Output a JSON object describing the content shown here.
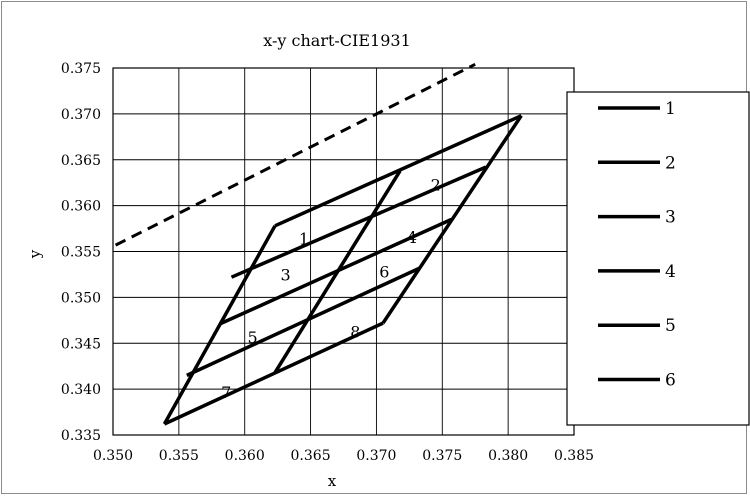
{
  "chart_data": {
    "type": "line",
    "title": "x-y chart-CIE1931",
    "xlabel": "x",
    "ylabel": "y",
    "xlim": [
      0.35,
      0.385
    ],
    "ylim": [
      0.335,
      0.375
    ],
    "x_ticks": [
      "0.350",
      "0.355",
      "0.360",
      "0.365",
      "0.370",
      "0.375",
      "0.380",
      "0.385"
    ],
    "y_ticks": [
      "0.335",
      "0.340",
      "0.345",
      "0.350",
      "0.355",
      "0.360",
      "0.365",
      "0.370",
      "0.375"
    ],
    "grid": true,
    "legend_position": "right",
    "series": [
      {
        "name": "1",
        "points": [
          [
            0.3623,
            0.3578
          ],
          [
            0.381,
            0.3698
          ]
        ]
      },
      {
        "name": "2",
        "points": [
          [
            0.359,
            0.3522
          ],
          [
            0.3783,
            0.3642
          ]
        ]
      },
      {
        "name": "3",
        "points": [
          [
            0.3581,
            0.3471
          ],
          [
            0.3757,
            0.3585
          ]
        ]
      },
      {
        "name": "4",
        "points": [
          [
            0.3556,
            0.3415
          ],
          [
            0.3733,
            0.3532
          ]
        ]
      },
      {
        "name": "5",
        "points": [
          [
            0.3539,
            0.3362
          ],
          [
            0.3705,
            0.3472
          ]
        ]
      },
      {
        "name": "6",
        "points": [
          [
            0.3623,
            0.3578
          ],
          [
            0.3539,
            0.3362
          ]
        ]
      }
    ],
    "extra_lines": [
      {
        "points": [
          [
            0.3623,
            0.3418
          ],
          [
            0.3718,
            0.3638
          ]
        ]
      },
      {
        "points": [
          [
            0.381,
            0.3698
          ],
          [
            0.3705,
            0.3472
          ]
        ]
      },
      {
        "style": "dashed",
        "points": [
          [
            0.3502,
            0.3557
          ],
          [
            0.3775,
            0.3754
          ]
        ]
      }
    ],
    "region_labels": [
      {
        "text": "1",
        "x": 0.3645,
        "y": 0.3564
      },
      {
        "text": "2",
        "x": 0.3745,
        "y": 0.3623
      },
      {
        "text": "3",
        "x": 0.3631,
        "y": 0.3525
      },
      {
        "text": "4",
        "x": 0.3727,
        "y": 0.3566
      },
      {
        "text": "5",
        "x": 0.3606,
        "y": 0.3457
      },
      {
        "text": "6",
        "x": 0.3706,
        "y": 0.3528
      },
      {
        "text": "7",
        "x": 0.3586,
        "y": 0.3397
      },
      {
        "text": "8",
        "x": 0.3684,
        "y": 0.3463
      }
    ],
    "colors": {
      "line": "#000000",
      "grid": "#000000"
    }
  }
}
